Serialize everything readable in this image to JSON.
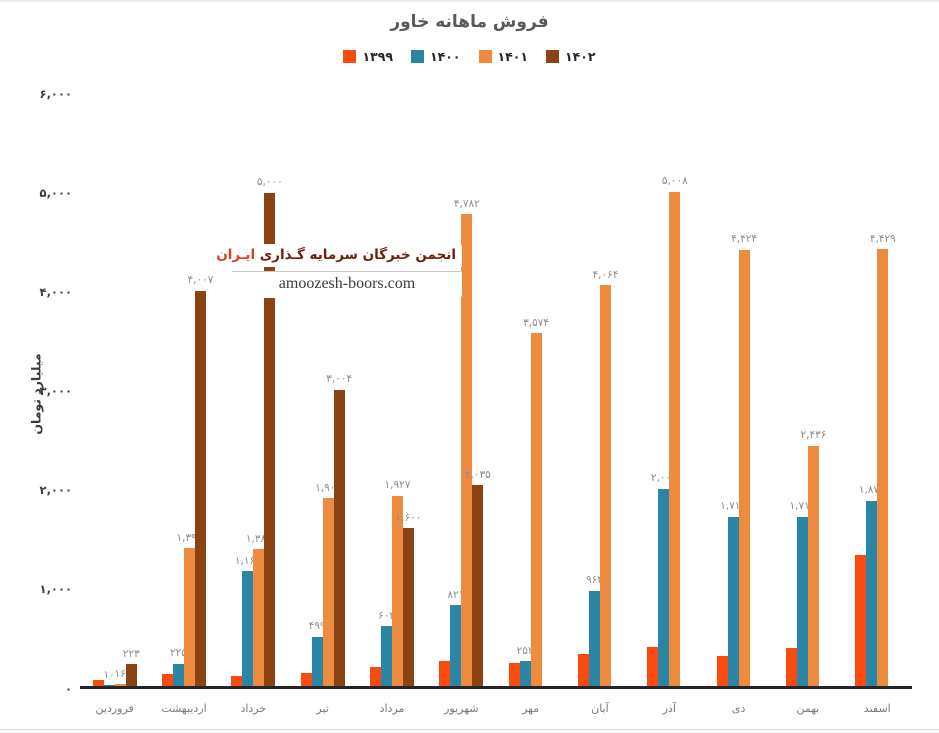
{
  "title": "فروش ماهانه خاور",
  "watermark": {
    "line1_main": "انجمن خبرگان سرمایه گـذاری",
    "line1_highlight": "ایـران",
    "line2": "amoozesh-boors.com"
  },
  "chart_data": {
    "type": "bar",
    "title": "فروش ماهانه خاور",
    "xlabel": "",
    "ylabel": "میلیارد تومان",
    "ylim": [
      0,
      6000
    ],
    "grid": false,
    "legend_position": "top",
    "y_ticks": [
      {
        "value": 0,
        "label": "۰"
      },
      {
        "value": 1000,
        "label": "۱,۰۰۰"
      },
      {
        "value": 2000,
        "label": "۲,۰۰۰"
      },
      {
        "value": 3000,
        "label": "۳,۰۰۰"
      },
      {
        "value": 4000,
        "label": "۴,۰۰۰"
      },
      {
        "value": 5000,
        "label": "۵,۰۰۰"
      },
      {
        "value": 6000,
        "label": "۶,۰۰۰"
      }
    ],
    "categories": [
      "فروردین",
      "اردیبهشت",
      "خرداد",
      "تیر",
      "مرداد",
      "شهریور",
      "مهر",
      "آبان",
      "آذر",
      "دی",
      "بهمن",
      "اسفند"
    ],
    "series": [
      {
        "name": "۱۳۹۹",
        "color": "#fb4a0f",
        "values": [
          60,
          120,
          100,
          130,
          190,
          250,
          235,
          320,
          400,
          300,
          390,
          1330
        ],
        "labels": [
          "",
          "",
          "",
          "",
          "",
          "",
          "",
          "",
          "",
          "",
          "",
          ""
        ]
      },
      {
        "name": "۱۴۰۰",
        "color": "#2b85a5",
        "values": [
          10,
          225,
          1164,
          499,
          604,
          821,
          252,
          964,
          2000,
          1718,
          1718,
          1878
        ],
        "labels": [
          "۱۰",
          "۲۲۵",
          "۱,۱۶۴",
          "۴۹۹",
          "۶۰۴",
          "۸۲۱",
          "۲۵۲",
          "۹۶۴",
          "۲,۰۰۰",
          "۱,۷۱۸",
          "۱,۷۱۸",
          "۱,۸۷۸"
        ]
      },
      {
        "name": "۱۴۰۱",
        "color": "#ed8c40",
        "values": [
          16,
          1396,
          1387,
          1903,
          1927,
          4782,
          3574,
          4064,
          5008,
          4424,
          2436,
          4429
        ],
        "labels": [
          "۱۶",
          "۱,۳۹۶",
          "۱,۳۸۷",
          "۱,۹۰۳",
          "۱,۹۲۷",
          "۴,۷۸۲",
          "۳,۵۷۴",
          "۴,۰۶۴",
          "۵,۰۰۸",
          "۴,۴۲۴",
          "۲,۴۳۶",
          "۴,۴۲۹"
        ]
      },
      {
        "name": "۱۴۰۲",
        "color": "#8c4313",
        "values": [
          223,
          4007,
          5000,
          3004,
          1600,
          2035,
          0,
          0,
          0,
          0,
          0,
          0
        ],
        "labels": [
          "۲۲۳",
          "۴,۰۰۷",
          "۵,۰۰۰",
          "۳,۰۰۴",
          "۱,۶۰۰",
          "۲,۰۳۵",
          "",
          "",
          "",
          "",
          "",
          ""
        ]
      }
    ]
  }
}
